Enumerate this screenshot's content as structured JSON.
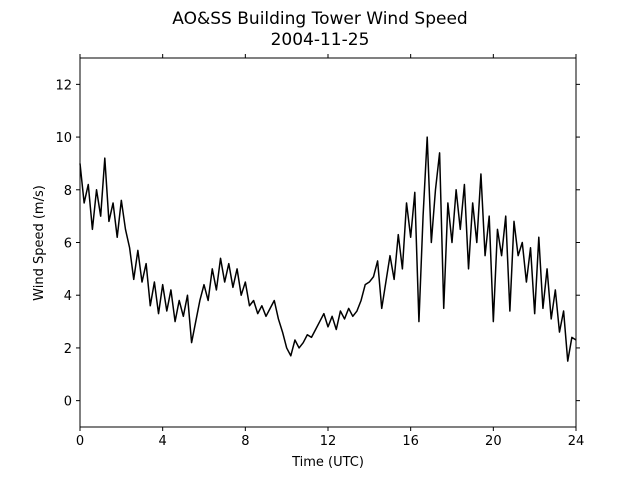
{
  "chart_data": {
    "type": "line",
    "title": "AO&SS Building Tower Wind Speed",
    "subtitle": "2004-11-25",
    "x_label": "Time (UTC)",
    "y_label": "Wind Speed (m/s)",
    "x": [
      0,
      0.2,
      0.4,
      0.6,
      0.8,
      1,
      1.2,
      1.4,
      1.6,
      1.8,
      2,
      2.2,
      2.4,
      2.6,
      2.8,
      3,
      3.2,
      3.4,
      3.6,
      3.8,
      4,
      4.2,
      4.4,
      4.6,
      4.8,
      5,
      5.2,
      5.4,
      5.6,
      5.8,
      6,
      6.2,
      6.4,
      6.6,
      6.8,
      7,
      7.2,
      7.4,
      7.6,
      7.8,
      8,
      8.2,
      8.4,
      8.6,
      8.8,
      9,
      9.2,
      9.4,
      9.6,
      9.8,
      10,
      10.2,
      10.4,
      10.6,
      10.8,
      11,
      11.2,
      11.4,
      11.6,
      11.8,
      12,
      12.2,
      12.4,
      12.6,
      12.8,
      13,
      13.2,
      13.4,
      13.6,
      13.8,
      14,
      14.2,
      14.4,
      14.6,
      14.8,
      15,
      15.2,
      15.4,
      15.6,
      15.8,
      16,
      16.2,
      16.4,
      16.6,
      16.8,
      17,
      17.2,
      17.4,
      17.6,
      17.8,
      18,
      18.2,
      18.4,
      18.6,
      18.8,
      19,
      19.2,
      19.4,
      19.6,
      19.8,
      20,
      20.2,
      20.4,
      20.6,
      20.8,
      21,
      21.2,
      21.4,
      21.6,
      21.8,
      22,
      22.2,
      22.4,
      22.6,
      22.8,
      23,
      23.2,
      23.4,
      23.6,
      23.8,
      24
    ],
    "series": [
      {
        "name": "Wind Speed",
        "color": "#000000",
        "values": [
          9.0,
          7.5,
          8.2,
          6.5,
          8.0,
          7.0,
          9.2,
          6.8,
          7.5,
          6.2,
          7.6,
          6.5,
          5.8,
          4.6,
          5.7,
          4.5,
          5.2,
          3.6,
          4.5,
          3.3,
          4.4,
          3.4,
          4.2,
          3.0,
          3.8,
          3.2,
          4.0,
          2.2,
          3.0,
          3.8,
          4.4,
          3.8,
          5.0,
          4.2,
          5.4,
          4.5,
          5.2,
          4.3,
          5.0,
          4.0,
          4.5,
          3.6,
          3.8,
          3.3,
          3.6,
          3.2,
          3.5,
          3.8,
          3.1,
          2.6,
          2.0,
          1.7,
          2.3,
          2.0,
          2.2,
          2.5,
          2.4,
          2.7,
          3.0,
          3.3,
          2.8,
          3.2,
          2.7,
          3.4,
          3.1,
          3.5,
          3.2,
          3.4,
          3.8,
          4.4,
          4.5,
          4.7,
          5.3,
          3.5,
          4.5,
          5.5,
          4.6,
          6.3,
          5.0,
          7.5,
          6.2,
          7.9,
          3.0,
          7.0,
          10.0,
          6.0,
          8.0,
          9.4,
          3.5,
          7.5,
          6.0,
          8.0,
          6.5,
          8.2,
          5.0,
          7.5,
          6.0,
          8.6,
          5.5,
          7.0,
          3.0,
          6.5,
          5.5,
          7.0,
          3.4,
          6.8,
          5.5,
          6.0,
          4.5,
          5.8,
          3.3,
          6.2,
          3.5,
          5.0,
          3.1,
          4.2,
          2.6,
          3.4,
          1.5,
          2.4,
          2.3
        ]
      }
    ],
    "xlim": [
      0,
      24
    ],
    "xticks": [
      0,
      4,
      8,
      12,
      16,
      20,
      24
    ],
    "ylim": [
      -1,
      13
    ],
    "yticks": [
      0,
      2,
      4,
      6,
      8,
      10,
      12
    ],
    "grid": false
  }
}
